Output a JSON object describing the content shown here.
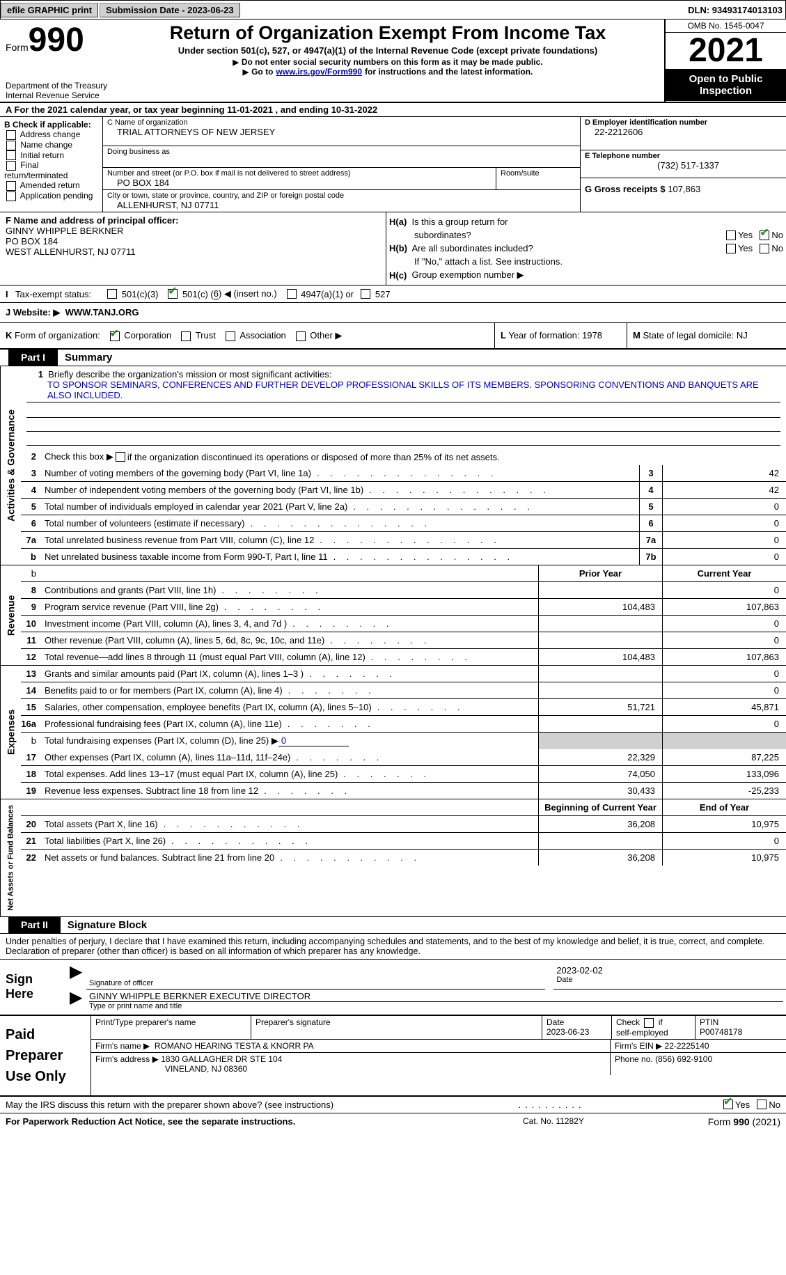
{
  "topbar": {
    "efile": "efile GRAPHIC print",
    "submission_label": "Submission Date - 2023-06-23",
    "dln_label": "DLN: 93493174013103"
  },
  "header": {
    "form_prefix": "Form",
    "form_num": "990",
    "dept": "Department of the Treasury",
    "irs": "Internal Revenue Service",
    "title": "Return of Organization Exempt From Income Tax",
    "subtitle": "Under section 501(c), 527, or 4947(a)(1) of the Internal Revenue Code (except private foundations)",
    "note1": "Do not enter social security numbers on this form as it may be made public.",
    "note2_pre": "Go to ",
    "note2_link": "www.irs.gov/Form990",
    "note2_post": " for instructions and the latest information.",
    "omb": "OMB No. 1545-0047",
    "year": "2021",
    "open": "Open to Public Inspection"
  },
  "rowA": {
    "text_pre": "A For the 2021 calendar year, or tax year beginning ",
    "begin": "11-01-2021",
    "mid": " , and ending ",
    "end": "10-31-2022"
  },
  "B": {
    "label": "B Check if applicable:",
    "items": [
      "Address change",
      "Name change",
      "Initial return",
      "Final return/terminated",
      "Amended return",
      "Application pending"
    ]
  },
  "C": {
    "name_label": "C Name of organization",
    "name": "TRIAL ATTORNEYS OF NEW JERSEY",
    "dba_label": "Doing business as",
    "dba": "",
    "street_label": "Number and street (or P.O. box if mail is not delivered to street address)",
    "street": "PO BOX 184",
    "room_label": "Room/suite",
    "room": "",
    "city_label": "City or town, state or province, country, and ZIP or foreign postal code",
    "city": "ALLENHURST, NJ  07711"
  },
  "D": {
    "label": "D Employer identification number",
    "value": "22-2212606"
  },
  "E": {
    "label": "E Telephone number",
    "value": "(732) 517-1337"
  },
  "G": {
    "label": "G Gross receipts $ ",
    "value": "107,863"
  },
  "F": {
    "label": "F Name and address of principal officer:",
    "name": "GINNY WHIPPLE BERKNER",
    "street": "PO BOX 184",
    "city": "WEST ALLENHURST, NJ  07711"
  },
  "H": {
    "a_label": "H(a)  Is this a group return for subordinates?",
    "no_checked": true,
    "b_label": "H(b)  Are all subordinates included?",
    "b_note": "If \"No,\" attach a list. See instructions.",
    "c_label": "H(c)  Group exemption number ▶"
  },
  "I": {
    "label": "I   Tax-exempt status:",
    "opt1": "501(c)(3)",
    "opt2_pre": "501(c) ( ",
    "opt2_num": "6",
    "opt2_post": " ) ◀ (insert no.)",
    "opt3": "4947(a)(1) or",
    "opt4": "527"
  },
  "J": {
    "label": "J   Website: ▶",
    "value": "WWW.TANJ.ORG"
  },
  "K": {
    "label": "K Form of organization:",
    "opts": [
      "Corporation",
      "Trust",
      "Association",
      "Other ▶"
    ],
    "corp_checked": true
  },
  "L": {
    "label": "L Year of formation: ",
    "value": "1978"
  },
  "M": {
    "label": "M State of legal domicile: ",
    "value": "NJ"
  },
  "part1": {
    "num": "Part I",
    "title": "Summary"
  },
  "mission": {
    "label": "Briefly describe the organization's mission or most significant activities:",
    "text": "TO SPONSOR SEMINARS, CONFERENCES AND FURTHER DEVELOP PROFESSIONAL SKILLS OF ITS MEMBERS. SPONSORING CONVENTIONS AND BANQUETS ARE ALSO INCLUDED."
  },
  "line2": "Check this box ▶ ▢ if the organization discontinued its operations or disposed of more than 25% of its net assets.",
  "gov_lines": [
    {
      "n": "3",
      "label": "Number of voting members of the governing body (Part VI, line 1a)",
      "box": "3",
      "val": "42"
    },
    {
      "n": "4",
      "label": "Number of independent voting members of the governing body (Part VI, line 1b)",
      "box": "4",
      "val": "42"
    },
    {
      "n": "5",
      "label": "Total number of individuals employed in calendar year 2021 (Part V, line 2a)",
      "box": "5",
      "val": "0"
    },
    {
      "n": "6",
      "label": "Total number of volunteers (estimate if necessary)",
      "box": "6",
      "val": "0"
    },
    {
      "n": "7a",
      "label": "Total unrelated business revenue from Part VIII, column (C), line 12",
      "box": "7a",
      "val": "0"
    },
    {
      "n": "b",
      "label": "Net unrelated business taxable income from Form 990-T, Part I, line 11",
      "box": "7b",
      "val": "0"
    }
  ],
  "col_headers": {
    "prior": "Prior Year",
    "current": "Current Year"
  },
  "revenue_lines": [
    {
      "n": "8",
      "label": "Contributions and grants (Part VIII, line 1h)",
      "prior": "",
      "curr": "0"
    },
    {
      "n": "9",
      "label": "Program service revenue (Part VIII, line 2g)",
      "prior": "104,483",
      "curr": "107,863"
    },
    {
      "n": "10",
      "label": "Investment income (Part VIII, column (A), lines 3, 4, and 7d )",
      "prior": "",
      "curr": "0"
    },
    {
      "n": "11",
      "label": "Other revenue (Part VIII, column (A), lines 5, 6d, 8c, 9c, 10c, and 11e)",
      "prior": "",
      "curr": "0"
    },
    {
      "n": "12",
      "label": "Total revenue—add lines 8 through 11 (must equal Part VIII, column (A), line 12)",
      "prior": "104,483",
      "curr": "107,863"
    }
  ],
  "expense_lines": [
    {
      "n": "13",
      "label": "Grants and similar amounts paid (Part IX, column (A), lines 1–3 )",
      "prior": "",
      "curr": "0"
    },
    {
      "n": "14",
      "label": "Benefits paid to or for members (Part IX, column (A), line 4)",
      "prior": "",
      "curr": "0"
    },
    {
      "n": "15",
      "label": "Salaries, other compensation, employee benefits (Part IX, column (A), lines 5–10)",
      "prior": "51,721",
      "curr": "45,871"
    },
    {
      "n": "16a",
      "label": "Professional fundraising fees (Part IX, column (A), line 11e)",
      "prior": "",
      "curr": "0"
    }
  ],
  "line16b": {
    "label": "Total fundraising expenses (Part IX, column (D), line 25) ▶",
    "value": "0"
  },
  "expense_lines2": [
    {
      "n": "17",
      "label": "Other expenses (Part IX, column (A), lines 11a–11d, 11f–24e)",
      "prior": "22,329",
      "curr": "87,225"
    },
    {
      "n": "18",
      "label": "Total expenses. Add lines 13–17 (must equal Part IX, column (A), line 25)",
      "prior": "74,050",
      "curr": "133,096"
    },
    {
      "n": "19",
      "label": "Revenue less expenses. Subtract line 18 from line 12",
      "prior": "30,433",
      "curr": "-25,233"
    }
  ],
  "net_headers": {
    "begin": "Beginning of Current Year",
    "end": "End of Year"
  },
  "net_lines": [
    {
      "n": "20",
      "label": "Total assets (Part X, line 16)",
      "prior": "36,208",
      "curr": "10,975"
    },
    {
      "n": "21",
      "label": "Total liabilities (Part X, line 26)",
      "prior": "",
      "curr": "0"
    },
    {
      "n": "22",
      "label": "Net assets or fund balances. Subtract line 21 from line 20",
      "prior": "36,208",
      "curr": "10,975"
    }
  ],
  "part2": {
    "num": "Part II",
    "title": "Signature Block"
  },
  "sig": {
    "intro": "Under penalties of perjury, I declare that I have examined this return, including accompanying schedules and statements, and to the best of my knowledge and belief, it is true, correct, and complete. Declaration of preparer (other than officer) is based on all information of which preparer has any knowledge.",
    "sign_here": "Sign Here",
    "sig_of_officer": "Signature of officer",
    "date": "2023-02-02",
    "date_label": "Date",
    "name": "GINNY WHIPPLE BERKNER  EXECUTIVE DIRECTOR",
    "name_label": "Type or print name and title"
  },
  "prep": {
    "title": "Paid Preparer Use Only",
    "h_print": "Print/Type preparer's name",
    "h_sig": "Preparer's signature",
    "h_date_label": "Date",
    "h_date": "2023-06-23",
    "h_check": "Check ▢ if self-employed",
    "h_ptin_label": "PTIN",
    "h_ptin": "P00748178",
    "firm_name_label": "Firm's name      ▶",
    "firm_name": "ROMANO HEARING TESTA & KNORR PA",
    "firm_ein_label": "Firm's EIN ▶",
    "firm_ein": "22-2225140",
    "firm_addr_label": "Firm's address ▶",
    "firm_addr1": "1830 GALLAGHER DR STE 104",
    "firm_addr2": "VINELAND, NJ  08360",
    "phone_label": "Phone no. ",
    "phone": "(856) 692-9100"
  },
  "discuss": {
    "label": "May the IRS discuss this return with the preparer shown above? (see instructions)",
    "yes": "Yes",
    "no": "No"
  },
  "footer": {
    "left": "For Paperwork Reduction Act Notice, see the separate instructions.",
    "mid": "Cat. No. 11282Y",
    "right": "Form 990 (2021)"
  },
  "vtabs": {
    "gov": "Activities & Governance",
    "rev": "Revenue",
    "exp": "Expenses",
    "net": "Net Assets or Fund Balances"
  }
}
